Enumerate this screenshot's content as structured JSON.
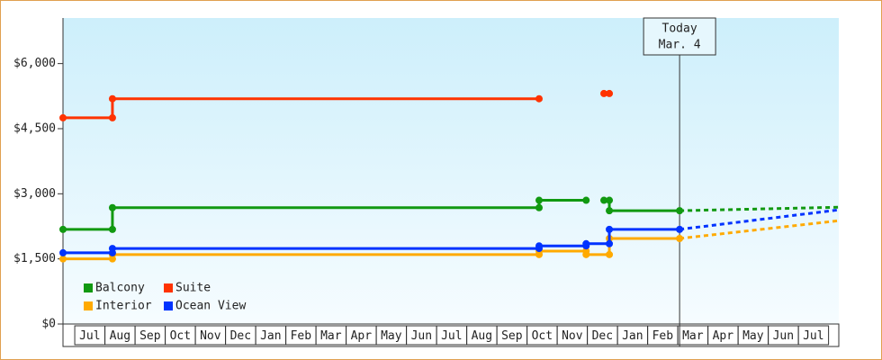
{
  "chart_data": {
    "type": "line",
    "step": true,
    "xlim": [
      -0.39,
      25.34
    ],
    "xticks": [
      {
        "value": 0.5,
        "label": "Jul"
      },
      {
        "value": 1.5,
        "label": "Aug"
      },
      {
        "value": 2.5,
        "label": "Sep"
      },
      {
        "value": 3.5,
        "label": "Oct"
      },
      {
        "value": 4.5,
        "label": "Nov"
      },
      {
        "value": 5.5,
        "label": "Dec"
      },
      {
        "value": 6.5,
        "label": "Jan"
      },
      {
        "value": 7.5,
        "label": "Feb"
      },
      {
        "value": 8.5,
        "label": "Mar"
      },
      {
        "value": 9.5,
        "label": "Apr"
      },
      {
        "value": 10.5,
        "label": "May"
      },
      {
        "value": 11.5,
        "label": "Jun"
      },
      {
        "value": 12.5,
        "label": "Jul"
      },
      {
        "value": 13.5,
        "label": "Aug"
      },
      {
        "value": 14.5,
        "label": "Sep"
      },
      {
        "value": 15.5,
        "label": "Oct"
      },
      {
        "value": 16.5,
        "label": "Nov"
      },
      {
        "value": 17.5,
        "label": "Dec"
      },
      {
        "value": 18.5,
        "label": "Jan"
      },
      {
        "value": 19.5,
        "label": "Feb"
      },
      {
        "value": 20.5,
        "label": "Mar"
      },
      {
        "value": 21.5,
        "label": "Apr"
      },
      {
        "value": 22.5,
        "label": "May"
      },
      {
        "value": 23.5,
        "label": "Jun"
      },
      {
        "value": 24.5,
        "label": "Jul"
      }
    ],
    "ylim": [
      0,
      7050
    ],
    "yticks": [
      {
        "value": 0,
        "label": "$0"
      },
      {
        "value": 1500,
        "label": "$1,500"
      },
      {
        "value": 3000,
        "label": "$3,000"
      },
      {
        "value": 4500,
        "label": "$4,500"
      },
      {
        "value": 6000,
        "label": "$6,000"
      }
    ],
    "annotation": {
      "x": 20.06,
      "lines": [
        "Today",
        "Mar. 4"
      ]
    },
    "series": [
      {
        "name": "Balcony",
        "color": "#119911",
        "x": [
          -0.39,
          1.25,
          1.25,
          15.4,
          15.4,
          16.96,
          null,
          17.55,
          17.73,
          17.73,
          20.06
        ],
        "values": [
          2180,
          2180,
          2680,
          2680,
          2850,
          2850,
          null,
          2850,
          2850,
          2610,
          2610
        ],
        "projection": {
          "x": [
            20.06,
            25.34
          ],
          "values": [
            2610,
            2690
          ]
        }
      },
      {
        "name": "Suite",
        "color": "#ff3300",
        "x": [
          -0.39,
          1.25,
          1.25,
          15.4,
          null,
          17.55,
          17.73
        ],
        "values": [
          4750,
          4750,
          5190,
          5190,
          null,
          5310,
          5310
        ]
      },
      {
        "name": "Interior",
        "color": "#ffaa00",
        "x": [
          -0.39,
          1.25,
          1.25,
          15.4,
          15.4,
          16.96,
          16.96,
          17.73,
          17.73,
          20.06
        ],
        "values": [
          1500,
          1500,
          1600,
          1600,
          1680,
          1680,
          1600,
          1600,
          1970,
          1970
        ],
        "projection": {
          "x": [
            20.06,
            25.34
          ],
          "values": [
            1970,
            2380
          ]
        }
      },
      {
        "name": "Ocean View",
        "color": "#0033ff",
        "x": [
          -0.39,
          1.25,
          1.25,
          15.4,
          15.4,
          16.96,
          16.96,
          17.73,
          17.73,
          20.06
        ],
        "values": [
          1640,
          1640,
          1740,
          1740,
          1800,
          1800,
          1850,
          1850,
          2180,
          2180
        ],
        "projection": {
          "x": [
            20.06,
            25.34
          ],
          "values": [
            2180,
            2630
          ]
        }
      }
    ]
  }
}
